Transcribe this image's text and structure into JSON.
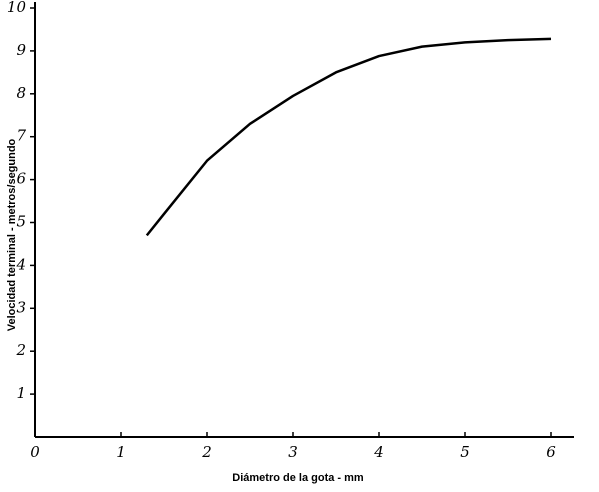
{
  "chart_data": {
    "type": "line",
    "x_label": "Diámetro de la gota - mm",
    "y_label": "Velocidad terminal - metros/segundo",
    "x": [
      1.3,
      1.5,
      2,
      2.5,
      3,
      3.5,
      4,
      4.5,
      5,
      5.5,
      6
    ],
    "values": [
      4.7,
      5.2,
      6.44,
      7.3,
      7.95,
      8.5,
      8.88,
      9.1,
      9.2,
      9.25,
      9.28
    ],
    "color": "#000000",
    "xlim": [
      0,
      6.25
    ],
    "xticks": [
      0,
      1,
      2,
      3,
      4,
      5,
      6
    ],
    "ylim": [
      0,
      10
    ],
    "yticks": [
      1,
      2,
      3,
      4,
      5,
      6,
      7,
      8,
      9,
      10
    ],
    "grid": false
  }
}
